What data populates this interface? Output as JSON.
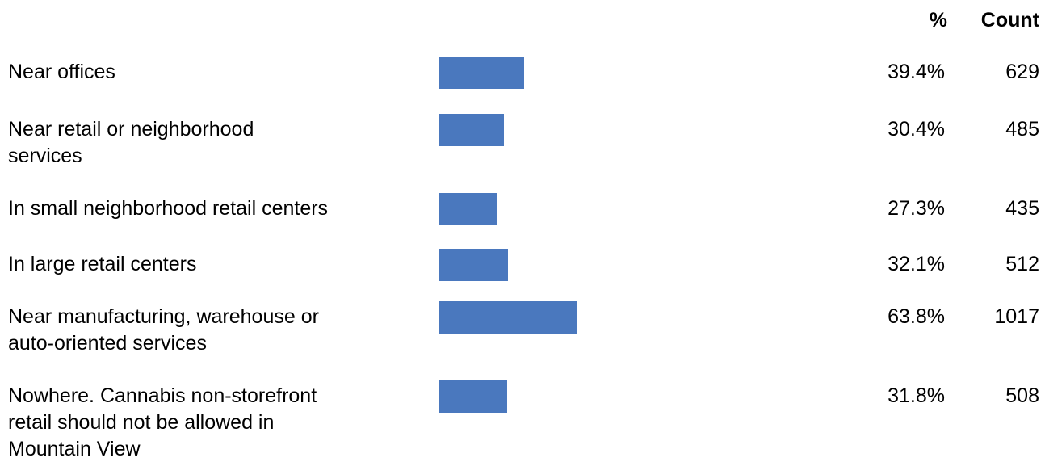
{
  "headers": {
    "percent": "%",
    "count": "Count"
  },
  "colors": {
    "bar": "#4a78be"
  },
  "chart_data": {
    "type": "bar",
    "orientation": "horizontal",
    "categories": [
      "Near offices",
      "Near retail or neighborhood\nservices",
      "In small neighborhood retail centers",
      "In large retail centers",
      "Near manufacturing, warehouse or\nauto-oriented services",
      "Nowhere. Cannabis non-storefront\nretail should not be allowed in\nMountain View"
    ],
    "values": [
      39.4,
      30.4,
      27.3,
      32.1,
      63.8,
      31.8
    ],
    "percent_labels": [
      "39.4%",
      "30.4%",
      "27.3%",
      "32.1%",
      "63.8%",
      "31.8%"
    ],
    "counts": [
      "629",
      "485",
      "435",
      "512",
      "1017",
      "508"
    ],
    "grid": false,
    "legend": "none"
  }
}
